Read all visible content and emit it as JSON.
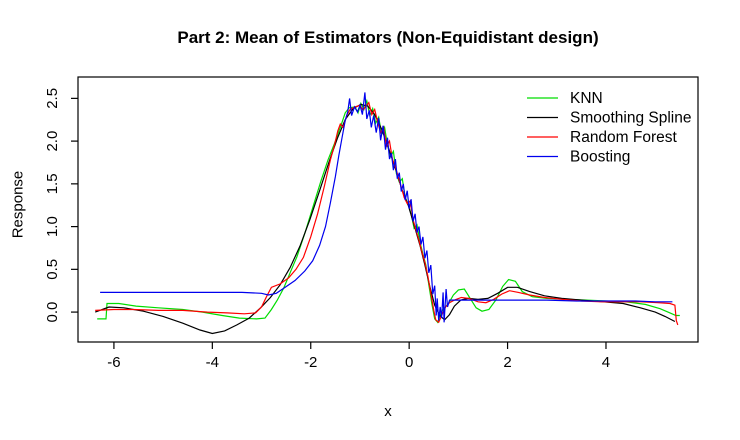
{
  "chart_data": {
    "type": "line",
    "title": "Part 2: Mean of Estimators (Non-Equidistant design)",
    "xlabel": "x",
    "ylabel": "Response",
    "xlim": [
      -6.73,
      5.87
    ],
    "ylim": [
      -0.35,
      2.75
    ],
    "x_ticks": [
      "-6",
      "-4",
      "-2",
      "0",
      "2",
      "4"
    ],
    "x_tick_values": [
      -6,
      -4,
      -2,
      0,
      2,
      4
    ],
    "y_ticks": [
      "0.0",
      "0.5",
      "1.0",
      "1.5",
      "2.0",
      "2.5"
    ],
    "y_tick_values": [
      0.0,
      0.5,
      1.0,
      1.5,
      2.0,
      2.5
    ],
    "grid": false,
    "box": true,
    "legend_position": "top-right",
    "series": [
      {
        "name": "KNN",
        "color": "#00dd00",
        "points": [
          [
            -6.34,
            -0.08
          ],
          [
            -6.16,
            -0.08
          ],
          [
            -6.14,
            0.1
          ],
          [
            -5.9,
            0.1
          ],
          [
            -5.55,
            0.07
          ],
          [
            -5.1,
            0.05
          ],
          [
            -4.6,
            0.03
          ],
          [
            -4.2,
            0.0
          ],
          [
            -3.8,
            -0.04
          ],
          [
            -3.45,
            -0.07
          ],
          [
            -3.1,
            -0.08
          ],
          [
            -2.93,
            -0.07
          ],
          [
            -2.8,
            0.03
          ],
          [
            -2.68,
            0.14
          ],
          [
            -2.55,
            0.28
          ],
          [
            -2.42,
            0.46
          ],
          [
            -2.28,
            0.65
          ],
          [
            -2.12,
            0.92
          ],
          [
            -1.96,
            1.22
          ],
          [
            -1.8,
            1.52
          ],
          [
            -1.65,
            1.78
          ],
          [
            -1.52,
            1.97
          ],
          [
            -1.4,
            2.16
          ],
          [
            -1.3,
            2.33
          ],
          [
            -1.22,
            2.39
          ],
          [
            -1.1,
            2.4
          ],
          [
            -1.04,
            2.33
          ],
          [
            -0.98,
            2.44
          ],
          [
            -0.92,
            2.37
          ],
          [
            -0.86,
            2.47
          ],
          [
            -0.8,
            2.3
          ],
          [
            -0.74,
            2.38
          ],
          [
            -0.68,
            2.21
          ],
          [
            -0.62,
            2.28
          ],
          [
            -0.56,
            2.08
          ],
          [
            -0.5,
            2.16
          ],
          [
            -0.44,
            1.95
          ],
          [
            -0.38,
            1.82
          ],
          [
            -0.32,
            1.88
          ],
          [
            -0.26,
            1.62
          ],
          [
            -0.2,
            1.52
          ],
          [
            -0.14,
            1.56
          ],
          [
            -0.08,
            1.34
          ],
          [
            -0.02,
            1.26
          ],
          [
            0.04,
            1.15
          ],
          [
            0.1,
            0.98
          ],
          [
            0.16,
            1.02
          ],
          [
            0.22,
            0.82
          ],
          [
            0.28,
            0.68
          ],
          [
            0.34,
            0.55
          ],
          [
            0.4,
            0.32
          ],
          [
            0.46,
            0.1
          ],
          [
            0.52,
            -0.08
          ],
          [
            0.58,
            -0.12
          ],
          [
            0.64,
            -0.02
          ],
          [
            0.7,
            0.04
          ],
          [
            0.8,
            0.1
          ],
          [
            0.9,
            0.2
          ],
          [
            1.0,
            0.26
          ],
          [
            1.12,
            0.27
          ],
          [
            1.24,
            0.16
          ],
          [
            1.36,
            0.05
          ],
          [
            1.48,
            0.01
          ],
          [
            1.62,
            0.03
          ],
          [
            1.76,
            0.14
          ],
          [
            1.9,
            0.3
          ],
          [
            2.02,
            0.38
          ],
          [
            2.16,
            0.36
          ],
          [
            2.3,
            0.24
          ],
          [
            2.5,
            0.18
          ],
          [
            2.8,
            0.16
          ],
          [
            3.2,
            0.15
          ],
          [
            3.6,
            0.14
          ],
          [
            4.0,
            0.13
          ],
          [
            4.4,
            0.12
          ],
          [
            4.8,
            0.09
          ],
          [
            5.1,
            0.04
          ],
          [
            5.3,
            -0.01
          ],
          [
            5.42,
            -0.04
          ],
          [
            5.5,
            -0.04
          ]
        ]
      },
      {
        "name": "Smoothing Spline",
        "color": "#000000",
        "points": [
          [
            -6.38,
            0.0
          ],
          [
            -6.1,
            0.06
          ],
          [
            -5.8,
            0.05
          ],
          [
            -5.4,
            0.01
          ],
          [
            -5.0,
            -0.05
          ],
          [
            -4.6,
            -0.13
          ],
          [
            -4.25,
            -0.21
          ],
          [
            -4.0,
            -0.25
          ],
          [
            -3.75,
            -0.22
          ],
          [
            -3.5,
            -0.15
          ],
          [
            -3.25,
            -0.07
          ],
          [
            -3.02,
            0.05
          ],
          [
            -2.82,
            0.17
          ],
          [
            -2.62,
            0.32
          ],
          [
            -2.42,
            0.52
          ],
          [
            -2.22,
            0.77
          ],
          [
            -2.02,
            1.08
          ],
          [
            -1.82,
            1.42
          ],
          [
            -1.62,
            1.77
          ],
          [
            -1.46,
            2.03
          ],
          [
            -1.3,
            2.25
          ],
          [
            -1.14,
            2.38
          ],
          [
            -0.98,
            2.43
          ],
          [
            -0.84,
            2.41
          ],
          [
            -0.7,
            2.31
          ],
          [
            -0.56,
            2.14
          ],
          [
            -0.42,
            1.92
          ],
          [
            -0.28,
            1.68
          ],
          [
            -0.14,
            1.42
          ],
          [
            -0.02,
            1.25
          ],
          [
            0.1,
            1.02
          ],
          [
            0.22,
            0.78
          ],
          [
            0.32,
            0.55
          ],
          [
            0.42,
            0.3
          ],
          [
            0.52,
            0.08
          ],
          [
            0.62,
            -0.04
          ],
          [
            0.72,
            -0.09
          ],
          [
            0.82,
            -0.03
          ],
          [
            0.92,
            0.07
          ],
          [
            1.05,
            0.14
          ],
          [
            1.2,
            0.16
          ],
          [
            1.4,
            0.15
          ],
          [
            1.6,
            0.16
          ],
          [
            1.8,
            0.22
          ],
          [
            2.0,
            0.29
          ],
          [
            2.2,
            0.29
          ],
          [
            2.45,
            0.24
          ],
          [
            2.75,
            0.19
          ],
          [
            3.1,
            0.16
          ],
          [
            3.5,
            0.14
          ],
          [
            3.95,
            0.12
          ],
          [
            4.35,
            0.1
          ],
          [
            4.7,
            0.05
          ],
          [
            5.0,
            0.0
          ],
          [
            5.2,
            -0.05
          ],
          [
            5.4,
            -0.11
          ]
        ]
      },
      {
        "name": "Random Forest",
        "color": "#ff0000",
        "points": [
          [
            -6.38,
            0.02
          ],
          [
            -6.0,
            0.03
          ],
          [
            -5.6,
            0.03
          ],
          [
            -5.1,
            0.02
          ],
          [
            -4.6,
            0.02
          ],
          [
            -4.1,
            0.0
          ],
          [
            -3.7,
            -0.01
          ],
          [
            -3.35,
            -0.02
          ],
          [
            -3.12,
            -0.01
          ],
          [
            -3.0,
            0.06
          ],
          [
            -2.9,
            0.18
          ],
          [
            -2.8,
            0.29
          ],
          [
            -2.62,
            0.33
          ],
          [
            -2.45,
            0.4
          ],
          [
            -2.3,
            0.5
          ],
          [
            -2.15,
            0.64
          ],
          [
            -2.0,
            0.88
          ],
          [
            -1.86,
            1.15
          ],
          [
            -1.72,
            1.48
          ],
          [
            -1.6,
            1.78
          ],
          [
            -1.52,
            1.95
          ],
          [
            -1.45,
            2.12
          ],
          [
            -1.4,
            2.2
          ],
          [
            -1.34,
            2.16
          ],
          [
            -1.27,
            2.3
          ],
          [
            -1.2,
            2.37
          ],
          [
            -1.1,
            2.4
          ],
          [
            -1.0,
            2.42
          ],
          [
            -0.94,
            2.36
          ],
          [
            -0.88,
            2.41
          ],
          [
            -0.82,
            2.45
          ],
          [
            -0.76,
            2.31
          ],
          [
            -0.7,
            2.37
          ],
          [
            -0.64,
            2.22
          ],
          [
            -0.58,
            2.1
          ],
          [
            -0.52,
            2.16
          ],
          [
            -0.46,
            1.94
          ],
          [
            -0.4,
            2.0
          ],
          [
            -0.34,
            1.79
          ],
          [
            -0.28,
            1.7
          ],
          [
            -0.22,
            1.58
          ],
          [
            -0.16,
            1.46
          ],
          [
            -0.1,
            1.34
          ],
          [
            -0.04,
            1.27
          ],
          [
            0.02,
            1.3
          ],
          [
            0.08,
            1.08
          ],
          [
            0.14,
            0.96
          ],
          [
            0.2,
            0.84
          ],
          [
            0.26,
            0.7
          ],
          [
            0.32,
            0.58
          ],
          [
            0.38,
            0.42
          ],
          [
            0.44,
            0.22
          ],
          [
            0.5,
            0.02
          ],
          [
            0.54,
            -0.09
          ],
          [
            0.6,
            -0.12
          ],
          [
            0.66,
            -0.04
          ],
          [
            0.74,
            0.06
          ],
          [
            0.82,
            0.11
          ],
          [
            0.92,
            0.14
          ],
          [
            1.06,
            0.17
          ],
          [
            1.22,
            0.16
          ],
          [
            1.4,
            0.12
          ],
          [
            1.56,
            0.11
          ],
          [
            1.72,
            0.15
          ],
          [
            1.88,
            0.21
          ],
          [
            2.04,
            0.25
          ],
          [
            2.22,
            0.23
          ],
          [
            2.45,
            0.2
          ],
          [
            2.75,
            0.17
          ],
          [
            3.1,
            0.15
          ],
          [
            3.5,
            0.13
          ],
          [
            3.9,
            0.12
          ],
          [
            4.3,
            0.12
          ],
          [
            4.7,
            0.12
          ],
          [
            5.05,
            0.11
          ],
          [
            5.3,
            0.1
          ],
          [
            5.4,
            0.08
          ],
          [
            5.43,
            -0.1
          ],
          [
            5.46,
            -0.15
          ]
        ]
      },
      {
        "name": "Boosting",
        "color": "#0000ee",
        "points": [
          [
            -6.28,
            0.23
          ],
          [
            -5.6,
            0.23
          ],
          [
            -4.8,
            0.23
          ],
          [
            -4.0,
            0.23
          ],
          [
            -3.4,
            0.23
          ],
          [
            -3.0,
            0.22
          ],
          [
            -2.86,
            0.2
          ],
          [
            -2.7,
            0.22
          ],
          [
            -2.52,
            0.29
          ],
          [
            -2.32,
            0.37
          ],
          [
            -2.12,
            0.48
          ],
          [
            -1.96,
            0.6
          ],
          [
            -1.82,
            0.78
          ],
          [
            -1.7,
            1.0
          ],
          [
            -1.6,
            1.28
          ],
          [
            -1.5,
            1.58
          ],
          [
            -1.43,
            1.83
          ],
          [
            -1.36,
            2.05
          ],
          [
            -1.3,
            2.24
          ],
          [
            -1.25,
            2.34
          ],
          [
            -1.21,
            2.5
          ],
          [
            -1.17,
            2.3
          ],
          [
            -1.11,
            2.4
          ],
          [
            -1.05,
            2.34
          ],
          [
            -1.0,
            2.42
          ],
          [
            -0.95,
            2.31
          ],
          [
            -0.9,
            2.57
          ],
          [
            -0.86,
            2.26
          ],
          [
            -0.81,
            2.36
          ],
          [
            -0.77,
            2.16
          ],
          [
            -0.72,
            2.3
          ],
          [
            -0.67,
            2.1
          ],
          [
            -0.62,
            2.27
          ],
          [
            -0.58,
            2.01
          ],
          [
            -0.53,
            2.18
          ],
          [
            -0.48,
            1.9
          ],
          [
            -0.44,
            2.04
          ],
          [
            -0.4,
            1.79
          ],
          [
            -0.36,
            1.86
          ],
          [
            -0.32,
            1.66
          ],
          [
            -0.28,
            1.79
          ],
          [
            -0.24,
            1.56
          ],
          [
            -0.2,
            1.63
          ],
          [
            -0.16,
            1.41
          ],
          [
            -0.12,
            1.5
          ],
          [
            -0.08,
            1.31
          ],
          [
            -0.04,
            1.42
          ],
          [
            0.0,
            1.21
          ],
          [
            0.04,
            1.32
          ],
          [
            0.08,
            1.06
          ],
          [
            0.12,
            1.15
          ],
          [
            0.16,
            0.93
          ],
          [
            0.2,
            1.0
          ],
          [
            0.24,
            0.79
          ],
          [
            0.28,
            0.88
          ],
          [
            0.32,
            0.63
          ],
          [
            0.36,
            0.72
          ],
          [
            0.4,
            0.46
          ],
          [
            0.44,
            0.55
          ],
          [
            0.48,
            0.21
          ],
          [
            0.52,
            0.31
          ],
          [
            0.55,
            -0.04
          ],
          [
            0.57,
            0.16
          ],
          [
            0.6,
            -0.1
          ],
          [
            0.63,
            0.06
          ],
          [
            0.66,
            -0.07
          ],
          [
            0.69,
            0.23
          ],
          [
            0.71,
            -0.12
          ],
          [
            0.75,
            0.27
          ],
          [
            0.78,
            0.06
          ],
          [
            0.82,
            0.14
          ],
          [
            1.0,
            0.14
          ],
          [
            1.6,
            0.14
          ],
          [
            2.2,
            0.14
          ],
          [
            2.8,
            0.14
          ],
          [
            3.4,
            0.13
          ],
          [
            4.0,
            0.13
          ],
          [
            4.6,
            0.13
          ],
          [
            5.0,
            0.12
          ],
          [
            5.35,
            0.12
          ]
        ]
      }
    ]
  }
}
